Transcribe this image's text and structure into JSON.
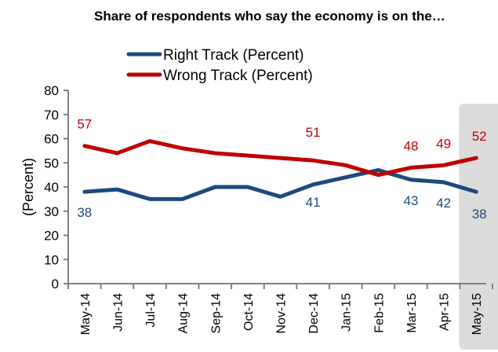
{
  "chart_data": {
    "type": "line",
    "title": "Share of respondents who say the economy is on the…",
    "xlabel": "",
    "ylabel": "(Percent)",
    "ylim": [
      0,
      80
    ],
    "yticks": [
      0,
      10,
      20,
      30,
      40,
      50,
      60,
      70,
      80
    ],
    "grid": false,
    "legend_position": "top-center",
    "categories": [
      "May-14",
      "Jun-14",
      "Jul-14",
      "Aug-14",
      "Sep-14",
      "Oct-14",
      "Nov-14",
      "Dec-14",
      "Jan-15",
      "Feb-15",
      "Mar-15",
      "Apr-15",
      "May-15"
    ],
    "highlighted_category": "May-15",
    "series": [
      {
        "name": "Right Track (Percent)",
        "color": "#1F497D",
        "values": [
          38,
          39,
          35,
          35,
          40,
          40,
          36,
          41,
          44,
          47,
          43,
          42,
          38
        ],
        "labels": [
          {
            "category": "May-14",
            "text": "38"
          },
          {
            "category": "Dec-14",
            "text": "41"
          },
          {
            "category": "Mar-15",
            "text": "43"
          },
          {
            "category": "Apr-15",
            "text": "42"
          },
          {
            "category": "May-15",
            "text": "38"
          }
        ]
      },
      {
        "name": "Wrong Track (Percent)",
        "color": "#C00000",
        "values": [
          57,
          54,
          59,
          56,
          54,
          53,
          52,
          51,
          49,
          45,
          48,
          49,
          52
        ],
        "labels": [
          {
            "category": "May-14",
            "text": "57"
          },
          {
            "category": "Dec-14",
            "text": "51"
          },
          {
            "category": "Mar-15",
            "text": "48"
          },
          {
            "category": "Apr-15",
            "text": "49"
          },
          {
            "category": "May-15",
            "text": "52"
          }
        ]
      }
    ],
    "colors": {
      "axis": "#808080",
      "highlight": "#DCDCDC"
    }
  }
}
